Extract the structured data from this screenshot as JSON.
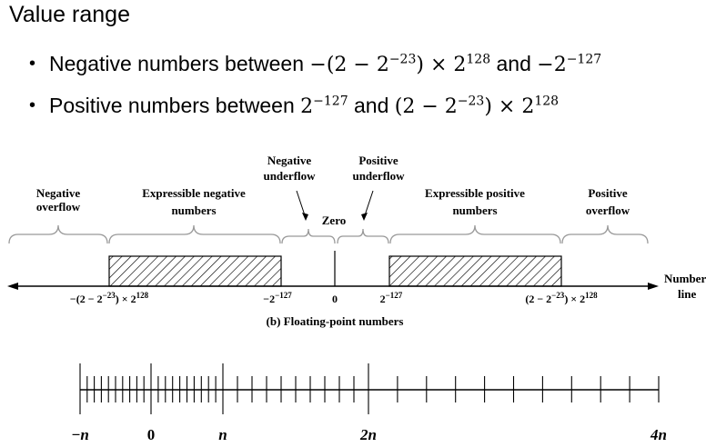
{
  "title": "Value range",
  "bullets": [
    {
      "lead": "Negative numbers between ",
      "a": "−(2 − 2",
      "a_exp": "−23",
      "a2": ") × 2",
      "a2_exp": "128",
      "mid": " and ",
      "b": "−2",
      "b_exp": "−127"
    },
    {
      "lead": "Positive numbers between ",
      "a": "2",
      "a_exp": "−127",
      "mid": " and ",
      "b": "(2 − 2",
      "b_exp": "−23",
      "b2": ") × 2",
      "b2_exp": "128"
    }
  ],
  "diagram": {
    "regions": {
      "neg_overflow": [
        "Negative",
        "overflow"
      ],
      "expr_neg": [
        "Expressible negative",
        "numbers"
      ],
      "neg_underflow": [
        "Negative",
        "underflow"
      ],
      "zero": "Zero",
      "pos_underflow": [
        "Positive",
        "underflow"
      ],
      "expr_pos": [
        "Expressible positive",
        "numbers"
      ],
      "pos_overflow": [
        "Positive",
        "overflow"
      ]
    },
    "axis_labels": {
      "neg_max": {
        "base": "−(2 − 2",
        "e1": "−23",
        "mid": ") × 2",
        "e2": "128"
      },
      "neg_min": {
        "base": "−2",
        "e1": "−127"
      },
      "zero": "0",
      "pos_min": {
        "base": "2",
        "e1": "−127"
      },
      "pos_max": {
        "base": "(2 − 2",
        "e1": "−23",
        "mid": ") × 2",
        "e2": "128"
      }
    },
    "number_line": [
      "Number",
      "line"
    ],
    "caption": "(b) Floating-point numbers"
  },
  "density_line": {
    "labels": [
      "−n",
      "0",
      "n",
      "2n",
      "4n"
    ]
  }
}
